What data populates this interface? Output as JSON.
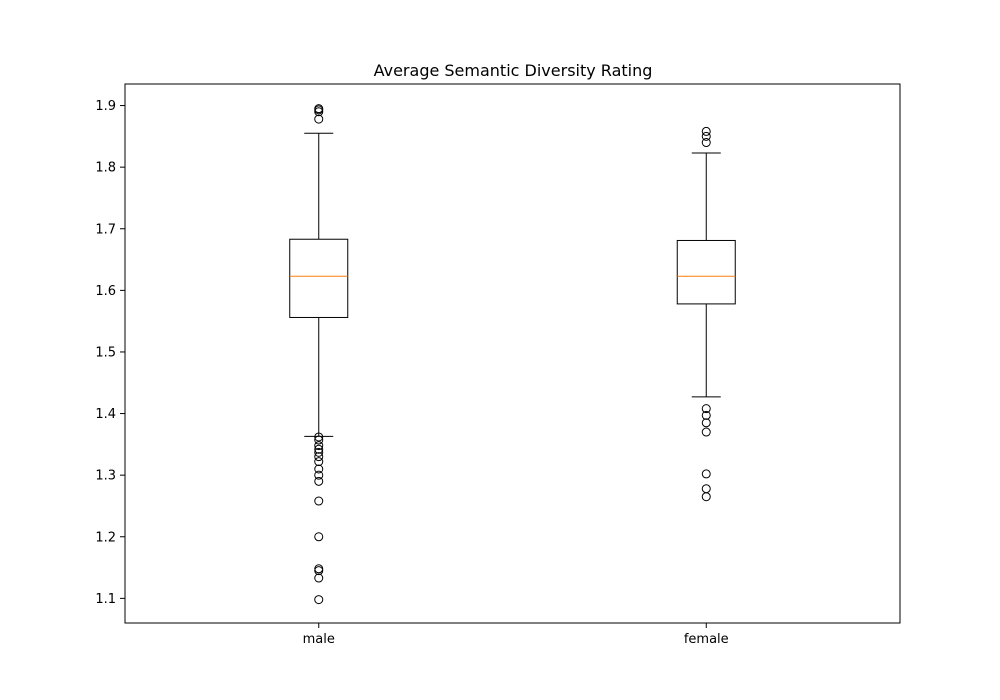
{
  "chart_data": {
    "type": "box",
    "title": "Average Semantic Diversity Rating",
    "xlabel": "",
    "ylabel": "",
    "categories": [
      "male",
      "female"
    ],
    "ylim": [
      1.06,
      1.935
    ],
    "yticks": [
      "1.1",
      "1.2",
      "1.3",
      "1.4",
      "1.5",
      "1.6",
      "1.7",
      "1.8",
      "1.9"
    ],
    "grid": false,
    "boxes": [
      {
        "category": "male",
        "whisker_low": 1.363,
        "q1": 1.556,
        "median": 1.623,
        "q3": 1.683,
        "whisker_high": 1.855,
        "outliers": [
          1.878,
          1.89,
          1.893,
          1.895,
          1.362,
          1.357,
          1.348,
          1.342,
          1.337,
          1.33,
          1.322,
          1.31,
          1.3,
          1.29,
          1.258,
          1.2,
          1.148,
          1.145,
          1.133,
          1.098
        ]
      },
      {
        "category": "female",
        "whisker_low": 1.427,
        "q1": 1.578,
        "median": 1.623,
        "q3": 1.681,
        "whisker_high": 1.823,
        "outliers": [
          1.84,
          1.85,
          1.858,
          1.408,
          1.397,
          1.385,
          1.37,
          1.302,
          1.278,
          1.265
        ]
      }
    ],
    "colors": {
      "box": "#000000",
      "median": "#ff7f0e",
      "outlier": "#000000"
    }
  }
}
